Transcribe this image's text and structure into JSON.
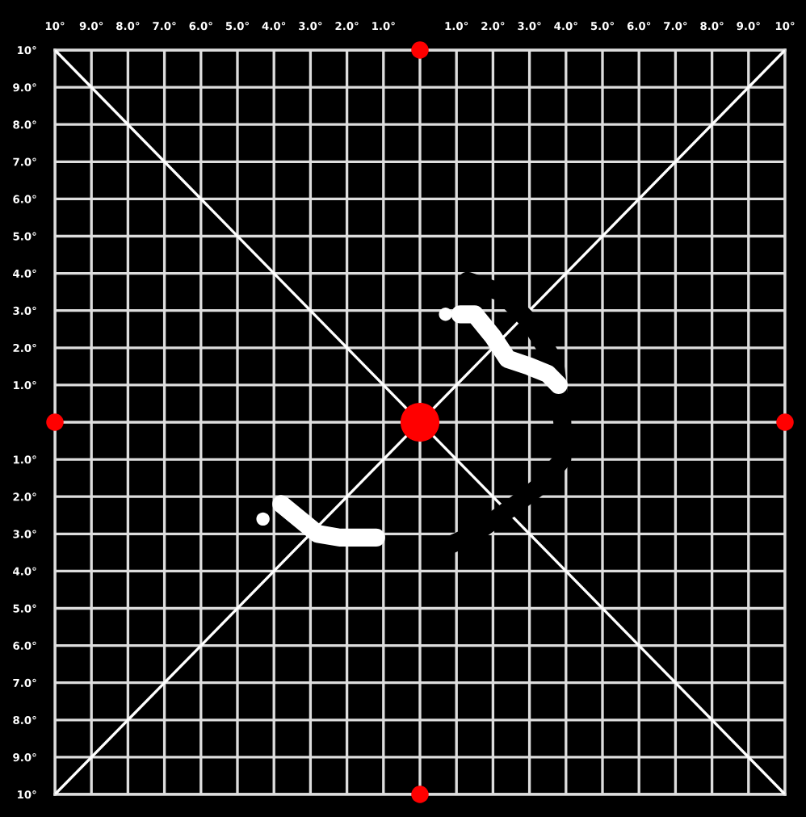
{
  "chart_data": {
    "type": "line",
    "xlim": [
      -10,
      10
    ],
    "ylim": [
      -10,
      10
    ],
    "xticks": [
      {
        "value": -10,
        "label": "10°"
      },
      {
        "value": -9,
        "label": "9.0°"
      },
      {
        "value": -8,
        "label": "8.0°"
      },
      {
        "value": -7,
        "label": "7.0°"
      },
      {
        "value": -6,
        "label": "6.0°"
      },
      {
        "value": -5,
        "label": "5.0°"
      },
      {
        "value": -4,
        "label": "4.0°"
      },
      {
        "value": -3,
        "label": "3.0°"
      },
      {
        "value": -2,
        "label": "2.0°"
      },
      {
        "value": -1,
        "label": "1.0°"
      },
      {
        "value": 0,
        "label": null
      },
      {
        "value": 1,
        "label": "1.0°"
      },
      {
        "value": 2,
        "label": "2.0°"
      },
      {
        "value": 3,
        "label": "3.0°"
      },
      {
        "value": 4,
        "label": "4.0°"
      },
      {
        "value": 5,
        "label": "5.0°"
      },
      {
        "value": 6,
        "label": "6.0°"
      },
      {
        "value": 7,
        "label": "7.0°"
      },
      {
        "value": 8,
        "label": "8.0°"
      },
      {
        "value": 9,
        "label": "9.0°"
      },
      {
        "value": 10,
        "label": "10°"
      }
    ],
    "yticks": [
      {
        "value": -10,
        "label": "10°"
      },
      {
        "value": -9,
        "label": "9.0°"
      },
      {
        "value": -8,
        "label": "8.0°"
      },
      {
        "value": -7,
        "label": "7.0°"
      },
      {
        "value": -6,
        "label": "6.0°"
      },
      {
        "value": -5,
        "label": "5.0°"
      },
      {
        "value": -4,
        "label": "4.0°"
      },
      {
        "value": -3,
        "label": "3.0°"
      },
      {
        "value": -2,
        "label": "2.0°"
      },
      {
        "value": -1,
        "label": "1.0°"
      },
      {
        "value": 0,
        "label": null
      },
      {
        "value": 1,
        "label": "1.0°"
      },
      {
        "value": 2,
        "label": "2.0°"
      },
      {
        "value": 3,
        "label": "3.0°"
      },
      {
        "value": 4,
        "label": "4.0°"
      },
      {
        "value": 5,
        "label": "5.0°"
      },
      {
        "value": 6,
        "label": "6.0°"
      },
      {
        "value": 7,
        "label": "7.0°"
      },
      {
        "value": 8,
        "label": "8.0°"
      },
      {
        "value": 9,
        "label": "9.0°"
      },
      {
        "value": 10,
        "label": "10°"
      }
    ],
    "grid": true,
    "series": [
      {
        "color": "#ffffff",
        "x": [
          -10,
          10
        ],
        "values": [
          10,
          -10
        ]
      },
      {
        "color": "#ffffff",
        "x": [
          -10,
          10
        ],
        "values": [
          -10,
          10
        ]
      },
      {
        "type": "line",
        "color": "#000000",
        "x": [
          1.3,
          2.2,
          3.0,
          3.7,
          3.9,
          3.9,
          3.3,
          2.5,
          1.5,
          0.6
        ],
        "values": [
          3.8,
          3.5,
          2.7,
          1.6,
          0.0,
          -1.0,
          -1.7,
          -2.3,
          -3.0,
          -3.4
        ]
      },
      {
        "type": "line",
        "color": "#ffffff",
        "x": [
          1.1,
          1.5,
          2.0,
          2.4,
          3.0,
          3.5,
          3.8
        ],
        "values": [
          2.9,
          2.9,
          2.3,
          1.7,
          1.5,
          1.3,
          1.0
        ]
      },
      {
        "type": "scatter",
        "color": "#ffffff",
        "x": [
          0.7
        ],
        "values": [
          2.9
        ]
      },
      {
        "type": "line",
        "color": "#ffffff",
        "x": [
          -3.8,
          -3.3,
          -2.8,
          -2.2,
          -1.2
        ],
        "values": [
          -2.2,
          -2.6,
          -3.0,
          -3.1,
          -3.1
        ]
      },
      {
        "type": "scatter",
        "color": "#ffffff",
        "x": [
          -4.3
        ],
        "values": [
          -2.6
        ]
      },
      {
        "type": "scatter",
        "color": "#ff0000",
        "x": [
          0,
          0,
          -10,
          10
        ],
        "values": [
          10,
          -10,
          0,
          0
        ]
      },
      {
        "type": "scatter",
        "color": "#ff0000",
        "x": [
          0
        ],
        "values": [
          0
        ]
      }
    ]
  }
}
